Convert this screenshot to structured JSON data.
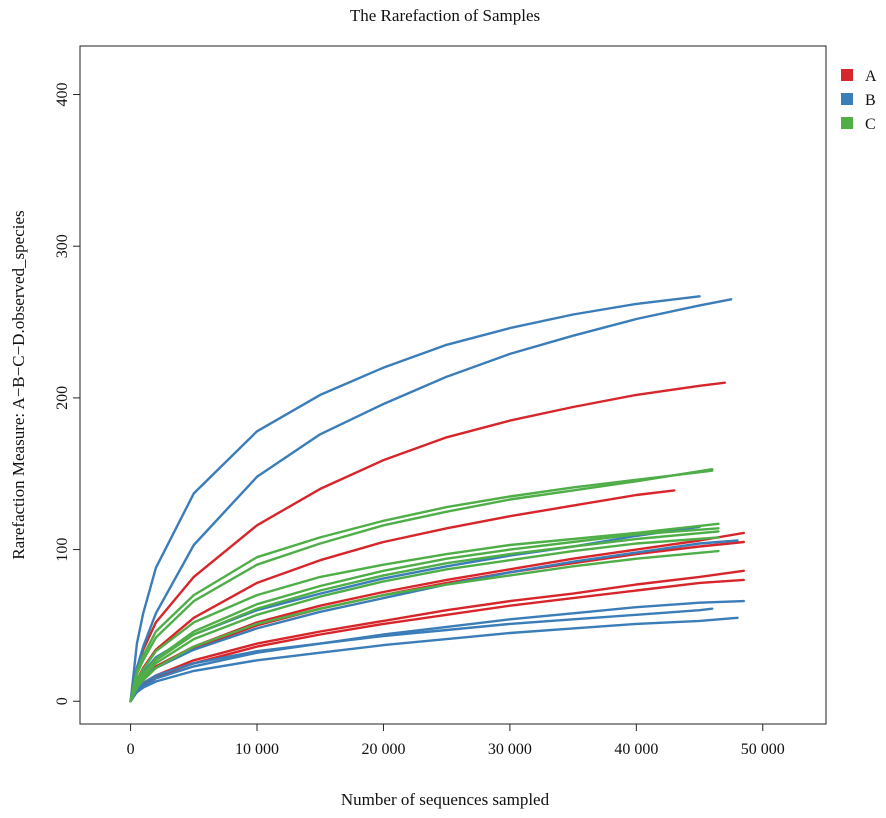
{
  "chart_data": {
    "type": "line",
    "title": "The Rarefaction of Samples",
    "xlabel": "Number of sequences sampled",
    "ylabel": "Rarefaction Measure: A−B−C−D.observed_species",
    "xlim": [
      -4000,
      55000
    ],
    "ylim": [
      -15,
      432
    ],
    "x_ticks": [
      0,
      10000,
      20000,
      30000,
      40000,
      50000
    ],
    "x_tick_labels": [
      "0",
      "10 000",
      "20 000",
      "30 000",
      "40 000",
      "50 000"
    ],
    "y_ticks": [
      0,
      100,
      200,
      300,
      400
    ],
    "y_tick_labels": [
      "0",
      "100",
      "200",
      "300",
      "400"
    ],
    "legend_position": "right",
    "grid": false,
    "colors": {
      "A": "#d7262b",
      "B": "#3a7db8",
      "C": "#4fae48"
    },
    "legend": [
      {
        "label": "A",
        "color": "#d7262b"
      },
      {
        "label": "B",
        "color": "#3a7db8"
      },
      {
        "label": "C",
        "color": "#4fae48"
      }
    ],
    "series": [
      {
        "group": "A",
        "color": "#d7262b",
        "x": [
          0,
          500,
          1000,
          2000,
          5000,
          10000,
          15000,
          20000,
          25000,
          30000,
          35000,
          40000,
          45000,
          47000
        ],
        "y": [
          0,
          22,
          34,
          52,
          82,
          116,
          140,
          159,
          174,
          185,
          194,
          202,
          208,
          210
        ]
      },
      {
        "group": "A",
        "color": "#d7262b",
        "x": [
          0,
          500,
          1000,
          2000,
          5000,
          10000,
          15000,
          20000,
          25000,
          30000,
          35000,
          40000,
          43000
        ],
        "y": [
          0,
          14,
          22,
          34,
          55,
          78,
          93,
          105,
          114,
          122,
          129,
          136,
          139
        ]
      },
      {
        "group": "A",
        "color": "#d7262b",
        "x": [
          0,
          500,
          1000,
          2000,
          5000,
          10000,
          15000,
          20000,
          25000,
          30000,
          35000,
          40000,
          45000,
          48500
        ],
        "y": [
          0,
          10,
          15,
          23,
          36,
          52,
          63,
          72,
          80,
          87,
          94,
          100,
          106,
          111
        ]
      },
      {
        "group": "A",
        "color": "#d7262b",
        "x": [
          0,
          500,
          1000,
          2000,
          5000,
          10000,
          15000,
          20000,
          25000,
          30000,
          35000,
          40000,
          45000,
          48500
        ],
        "y": [
          0,
          10,
          14,
          22,
          35,
          50,
          61,
          70,
          78,
          85,
          91,
          97,
          102,
          105
        ]
      },
      {
        "group": "A",
        "color": "#d7262b",
        "x": [
          0,
          500,
          1000,
          2000,
          5000,
          10000,
          15000,
          20000,
          25000,
          30000,
          35000,
          40000,
          45000,
          48500
        ],
        "y": [
          0,
          8,
          12,
          17,
          27,
          38,
          46,
          53,
          60,
          66,
          71,
          77,
          82,
          86
        ]
      },
      {
        "group": "A",
        "color": "#d7262b",
        "x": [
          0,
          500,
          1000,
          2000,
          5000,
          10000,
          15000,
          20000,
          25000,
          30000,
          35000,
          40000,
          45000,
          48500
        ],
        "y": [
          0,
          7,
          11,
          16,
          25,
          36,
          44,
          51,
          57,
          63,
          68,
          73,
          78,
          80
        ]
      },
      {
        "group": "B",
        "color": "#3a7db8",
        "x": [
          0,
          500,
          1000,
          2000,
          5000,
          10000,
          15000,
          20000,
          25000,
          30000,
          35000,
          40000,
          45000
        ],
        "y": [
          0,
          38,
          58,
          88,
          137,
          178,
          202,
          220,
          235,
          246,
          255,
          262,
          267
        ]
      },
      {
        "group": "B",
        "color": "#3a7db8",
        "x": [
          0,
          500,
          1000,
          2000,
          5000,
          10000,
          15000,
          20000,
          25000,
          30000,
          35000,
          40000,
          45000,
          47500
        ],
        "y": [
          0,
          22,
          36,
          58,
          103,
          148,
          176,
          196,
          214,
          229,
          241,
          252,
          261,
          265
        ]
      },
      {
        "group": "B",
        "color": "#3a7db8",
        "x": [
          0,
          500,
          1000,
          2000,
          5000,
          10000,
          15000,
          20000,
          25000,
          30000,
          35000,
          40000,
          45000
        ],
        "y": [
          0,
          13,
          19,
          29,
          44,
          60,
          71,
          81,
          89,
          96,
          102,
          109,
          115
        ]
      },
      {
        "group": "B",
        "color": "#3a7db8",
        "x": [
          0,
          500,
          1000,
          2000,
          5000,
          10000,
          15000,
          20000,
          25000,
          30000,
          35000,
          40000,
          45000,
          48000
        ],
        "y": [
          0,
          10,
          15,
          22,
          34,
          48,
          59,
          68,
          77,
          85,
          92,
          98,
          104,
          106
        ]
      },
      {
        "group": "B",
        "color": "#3a7db8",
        "x": [
          0,
          500,
          1000,
          2000,
          5000,
          10000,
          15000,
          20000,
          25000,
          30000,
          35000,
          40000,
          45000,
          48500
        ],
        "y": [
          0,
          7,
          10,
          15,
          23,
          32,
          38,
          44,
          49,
          54,
          58,
          62,
          65,
          66
        ]
      },
      {
        "group": "B",
        "color": "#3a7db8",
        "x": [
          0,
          500,
          1000,
          2000,
          5000,
          10000,
          15000,
          20000,
          25000,
          30000,
          35000,
          40000,
          45000,
          46000
        ],
        "y": [
          0,
          8,
          12,
          17,
          25,
          33,
          38,
          43,
          47,
          51,
          54,
          57,
          60,
          61
        ]
      },
      {
        "group": "B",
        "color": "#3a7db8",
        "x": [
          0,
          500,
          1000,
          2000,
          5000,
          10000,
          15000,
          20000,
          25000,
          30000,
          35000,
          40000,
          45000,
          48000
        ],
        "y": [
          0,
          6,
          9,
          13,
          20,
          27,
          32,
          37,
          41,
          45,
          48,
          51,
          53,
          55
        ]
      },
      {
        "group": "C",
        "color": "#4fae48",
        "x": [
          0,
          500,
          1000,
          2000,
          5000,
          10000,
          15000,
          20000,
          25000,
          30000,
          35000,
          40000,
          46000
        ],
        "y": [
          0,
          20,
          30,
          46,
          70,
          95,
          108,
          119,
          128,
          135,
          141,
          146,
          152
        ]
      },
      {
        "group": "C",
        "color": "#4fae48",
        "x": [
          0,
          500,
          1000,
          2000,
          5000,
          10000,
          15000,
          20000,
          25000,
          30000,
          35000,
          40000,
          46000
        ],
        "y": [
          0,
          18,
          27,
          42,
          66,
          90,
          104,
          116,
          125,
          133,
          139,
          145,
          153
        ]
      },
      {
        "group": "C",
        "color": "#4fae48",
        "x": [
          0,
          500,
          1000,
          2000,
          5000,
          10000,
          15000,
          20000,
          25000,
          30000,
          35000,
          40000,
          46500
        ],
        "y": [
          0,
          14,
          21,
          33,
          52,
          70,
          82,
          90,
          97,
          103,
          107,
          111,
          117
        ]
      },
      {
        "group": "C",
        "color": "#4fae48",
        "x": [
          0,
          500,
          1000,
          2000,
          5000,
          10000,
          15000,
          20000,
          25000,
          30000,
          35000,
          40000,
          46500
        ],
        "y": [
          0,
          12,
          18,
          28,
          46,
          64,
          76,
          86,
          94,
          100,
          105,
          110,
          114
        ]
      },
      {
        "group": "C",
        "color": "#4fae48",
        "x": [
          0,
          500,
          1000,
          2000,
          5000,
          10000,
          15000,
          20000,
          25000,
          30000,
          35000,
          40000,
          46500
        ],
        "y": [
          0,
          11,
          17,
          27,
          44,
          61,
          73,
          83,
          91,
          97,
          102,
          107,
          112
        ]
      },
      {
        "group": "C",
        "color": "#4fae48",
        "x": [
          0,
          500,
          1000,
          2000,
          5000,
          10000,
          15000,
          20000,
          25000,
          30000,
          35000,
          40000,
          46500
        ],
        "y": [
          0,
          11,
          16,
          25,
          41,
          57,
          69,
          79,
          87,
          93,
          99,
          104,
          108
        ]
      },
      {
        "group": "C",
        "color": "#4fae48",
        "x": [
          0,
          500,
          1000,
          2000,
          5000,
          10000,
          15000,
          20000,
          25000,
          30000,
          35000,
          40000,
          46500
        ],
        "y": [
          0,
          9,
          14,
          22,
          36,
          51,
          61,
          70,
          77,
          83,
          89,
          94,
          99
        ]
      }
    ]
  }
}
